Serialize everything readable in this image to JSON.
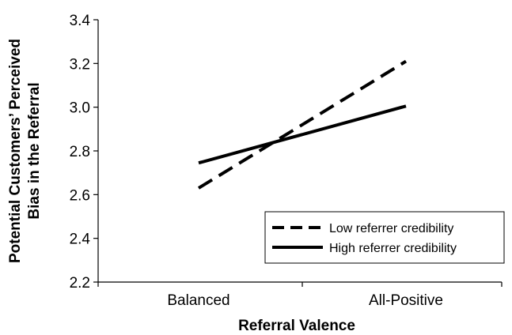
{
  "chart_data": {
    "type": "line",
    "title": "",
    "xlabel": "Referral Valence",
    "ylabel_lines": [
      "Potential Customers’ Perceived",
      "Bias in the Referral"
    ],
    "categories": [
      "Balanced",
      "All-Positive"
    ],
    "ylim": [
      2.2,
      3.4
    ],
    "yticks": [
      2.2,
      2.4,
      2.6,
      2.8,
      3.0,
      3.2,
      3.4
    ],
    "ytick_labels": [
      "2.2",
      "2.4",
      "2.6",
      "2.8",
      "3.0",
      "3.2",
      "3.4"
    ],
    "grid": false,
    "legend_position": "bottom-right",
    "series": [
      {
        "name": "Low referrer credibility",
        "values": [
          2.63,
          3.21
        ],
        "style": "dashed",
        "color": "#000000"
      },
      {
        "name": "High referrer credibility",
        "values": [
          2.745,
          3.005
        ],
        "style": "solid",
        "color": "#000000"
      }
    ]
  }
}
